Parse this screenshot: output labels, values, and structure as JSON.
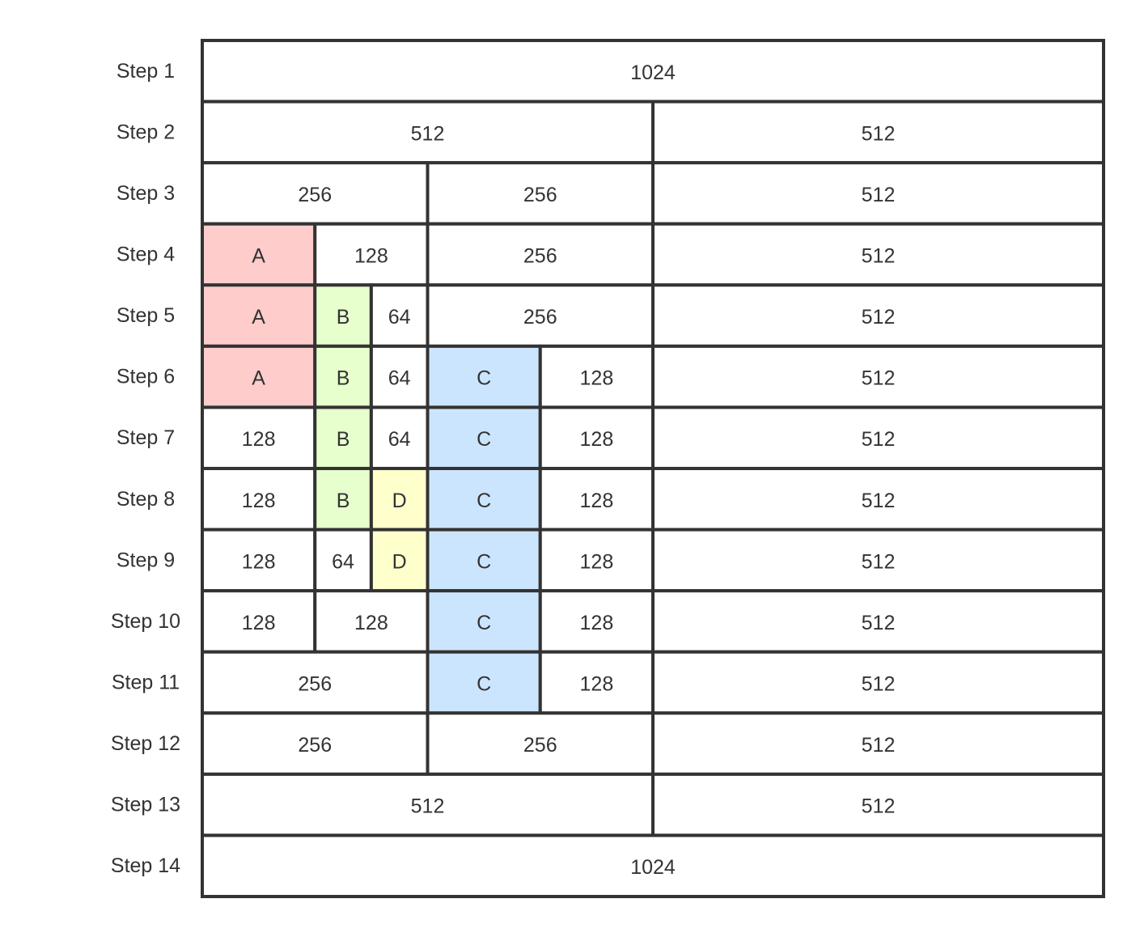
{
  "diagram": {
    "total_size": 1024,
    "colors": {
      "free": "#ffffff",
      "A": "#ffcccc",
      "B": "#e6ffcc",
      "C": "#cce5ff",
      "D": "#ffffcc",
      "border": "#333333",
      "text": "#333333"
    },
    "steps": [
      {
        "label": "Step 1",
        "blocks": [
          {
            "text": "1024",
            "size": 1024
          }
        ]
      },
      {
        "label": "Step 2",
        "blocks": [
          {
            "text": "512",
            "size": 512
          },
          {
            "text": "512",
            "size": 512
          }
        ]
      },
      {
        "label": "Step 3",
        "blocks": [
          {
            "text": "256",
            "size": 256
          },
          {
            "text": "256",
            "size": 256
          },
          {
            "text": "512",
            "size": 512
          }
        ]
      },
      {
        "label": "Step 4",
        "blocks": [
          {
            "text": "A",
            "size": 128,
            "alloc": "A"
          },
          {
            "text": "128",
            "size": 128
          },
          {
            "text": "256",
            "size": 256
          },
          {
            "text": "512",
            "size": 512
          }
        ]
      },
      {
        "label": "Step 5",
        "blocks": [
          {
            "text": "A",
            "size": 128,
            "alloc": "A"
          },
          {
            "text": "B",
            "size": 64,
            "alloc": "B"
          },
          {
            "text": "64",
            "size": 64
          },
          {
            "text": "256",
            "size": 256
          },
          {
            "text": "512",
            "size": 512
          }
        ]
      },
      {
        "label": "Step 6",
        "blocks": [
          {
            "text": "A",
            "size": 128,
            "alloc": "A"
          },
          {
            "text": "B",
            "size": 64,
            "alloc": "B"
          },
          {
            "text": "64",
            "size": 64
          },
          {
            "text": "C",
            "size": 128,
            "alloc": "C"
          },
          {
            "text": "128",
            "size": 128
          },
          {
            "text": "512",
            "size": 512
          }
        ]
      },
      {
        "label": "Step 7",
        "blocks": [
          {
            "text": "128",
            "size": 128
          },
          {
            "text": "B",
            "size": 64,
            "alloc": "B"
          },
          {
            "text": "64",
            "size": 64
          },
          {
            "text": "C",
            "size": 128,
            "alloc": "C"
          },
          {
            "text": "128",
            "size": 128
          },
          {
            "text": "512",
            "size": 512
          }
        ]
      },
      {
        "label": "Step 8",
        "blocks": [
          {
            "text": "128",
            "size": 128
          },
          {
            "text": "B",
            "size": 64,
            "alloc": "B"
          },
          {
            "text": "D",
            "size": 64,
            "alloc": "D"
          },
          {
            "text": "C",
            "size": 128,
            "alloc": "C"
          },
          {
            "text": "128",
            "size": 128
          },
          {
            "text": "512",
            "size": 512
          }
        ]
      },
      {
        "label": "Step 9",
        "blocks": [
          {
            "text": "128",
            "size": 128
          },
          {
            "text": "64",
            "size": 64
          },
          {
            "text": "D",
            "size": 64,
            "alloc": "D"
          },
          {
            "text": "C",
            "size": 128,
            "alloc": "C"
          },
          {
            "text": "128",
            "size": 128
          },
          {
            "text": "512",
            "size": 512
          }
        ]
      },
      {
        "label": "Step 10",
        "blocks": [
          {
            "text": "128",
            "size": 128
          },
          {
            "text": "128",
            "size": 128
          },
          {
            "text": "C",
            "size": 128,
            "alloc": "C"
          },
          {
            "text": "128",
            "size": 128
          },
          {
            "text": "512",
            "size": 512
          }
        ]
      },
      {
        "label": "Step 11",
        "blocks": [
          {
            "text": "256",
            "size": 256
          },
          {
            "text": "C",
            "size": 128,
            "alloc": "C"
          },
          {
            "text": "128",
            "size": 128
          },
          {
            "text": "512",
            "size": 512
          }
        ]
      },
      {
        "label": "Step 12",
        "blocks": [
          {
            "text": "256",
            "size": 256
          },
          {
            "text": "256",
            "size": 256
          },
          {
            "text": "512",
            "size": 512
          }
        ]
      },
      {
        "label": "Step 13",
        "blocks": [
          {
            "text": "512",
            "size": 512
          },
          {
            "text": "512",
            "size": 512
          }
        ]
      },
      {
        "label": "Step 14",
        "blocks": [
          {
            "text": "1024",
            "size": 1024
          }
        ]
      }
    ]
  }
}
